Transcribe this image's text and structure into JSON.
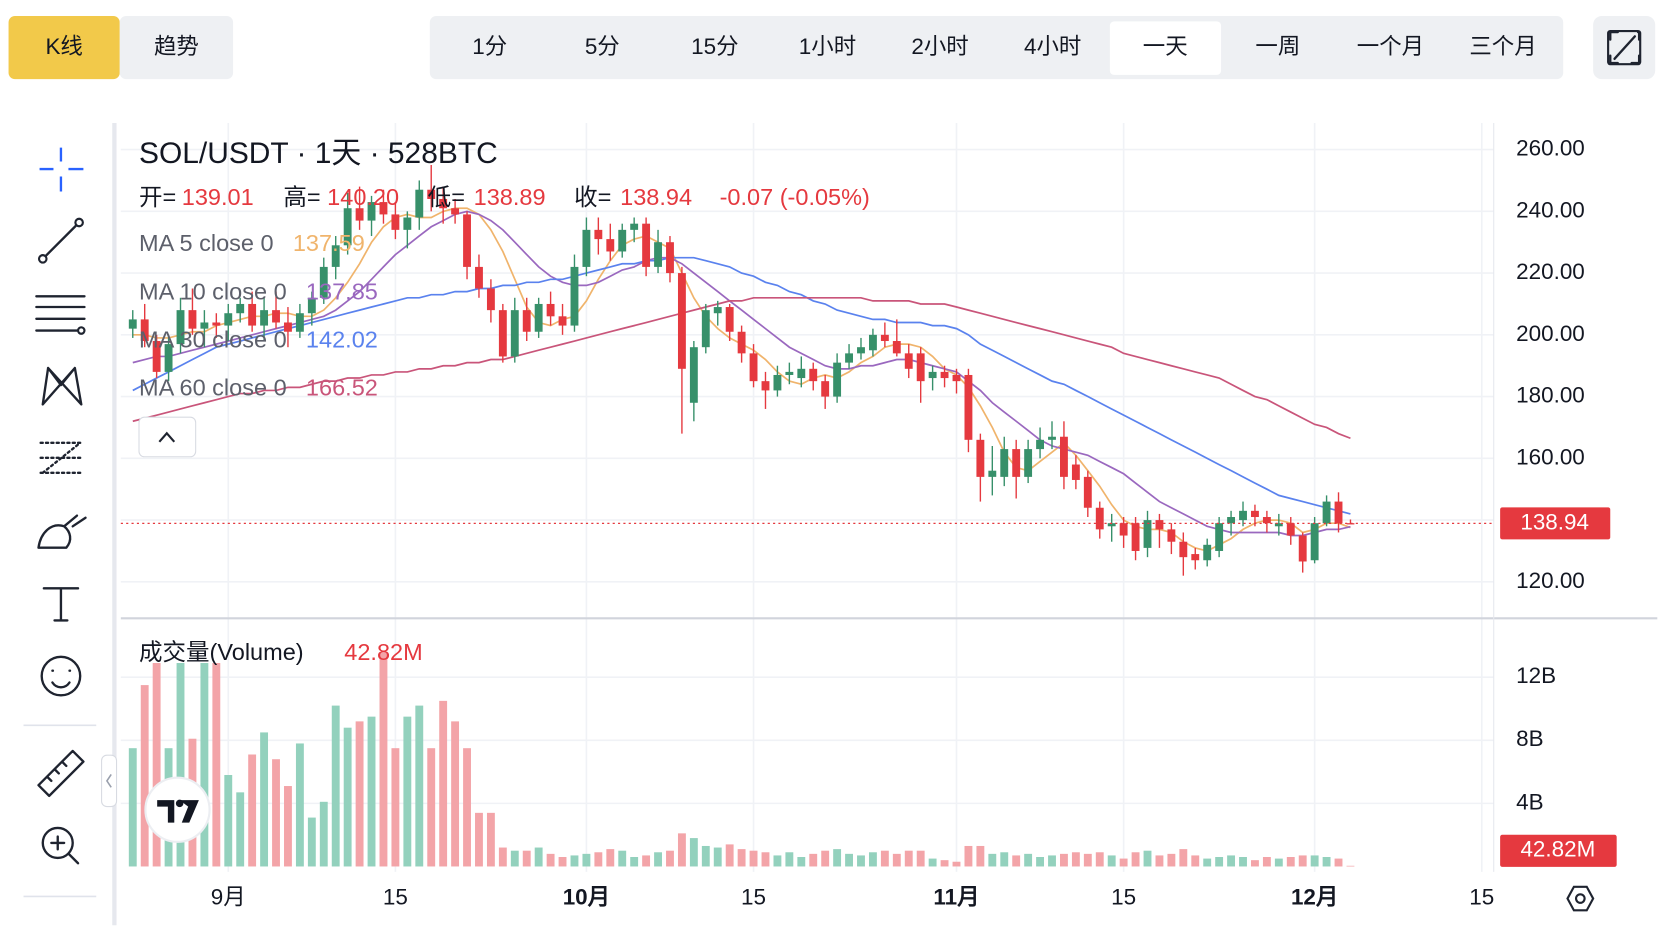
{
  "toolbar": {
    "view_tabs": [
      "K线",
      "趋势"
    ],
    "intervals": [
      "1分",
      "5分",
      "15分",
      "1小时",
      "2小时",
      "4小时",
      "一天",
      "一周",
      "一个月",
      "三个月"
    ]
  },
  "chart_data": {
    "type": "candlestick",
    "title": "SOL/USDT · 1天 · 528BTC",
    "ohlc_legend": [
      [
        "开=",
        "139.01"
      ],
      [
        "高=",
        "140.20"
      ],
      [
        "低=",
        "138.89"
      ],
      [
        "收=",
        "138.94"
      ]
    ],
    "change": "-0.07 (-0.05%)",
    "up_color": "#37906a",
    "down_color": "#e5393f",
    "x": [
      "08-24",
      "08-25",
      "08-26",
      "08-27",
      "08-28",
      "08-29",
      "08-30",
      "08-31",
      "09-01",
      "09-02",
      "09-03",
      "09-04",
      "09-05",
      "09-06",
      "09-07",
      "09-08",
      "09-09",
      "09-10",
      "09-11",
      "09-12",
      "09-13",
      "09-14",
      "09-15",
      "09-16",
      "09-17",
      "09-18",
      "09-19",
      "09-20",
      "09-21",
      "09-22",
      "09-23",
      "09-24",
      "09-25",
      "09-26",
      "09-27",
      "09-28",
      "09-29",
      "09-30",
      "10-01",
      "10-02",
      "10-03",
      "10-04",
      "10-05",
      "10-06",
      "10-07",
      "10-08",
      "10-09",
      "10-10",
      "10-11",
      "10-12",
      "10-13",
      "10-14",
      "10-15",
      "10-16",
      "10-17",
      "10-18",
      "10-19",
      "10-20",
      "10-21",
      "10-22",
      "10-23",
      "10-24",
      "10-25",
      "10-26",
      "10-27",
      "10-28",
      "10-29",
      "10-30",
      "10-31",
      "11-01",
      "11-02",
      "11-03",
      "11-04",
      "11-05",
      "11-06",
      "11-07",
      "11-08",
      "11-09",
      "11-10",
      "11-11",
      "11-12",
      "11-13",
      "11-14",
      "11-15",
      "11-16",
      "11-17",
      "11-18",
      "11-19",
      "11-20",
      "11-21",
      "11-22",
      "11-23",
      "11-24",
      "11-25",
      "11-26",
      "11-27",
      "11-28",
      "11-29",
      "11-30",
      "12-01",
      "12-02",
      "12-03",
      "12-04"
    ],
    "open": [
      202,
      205,
      198,
      188,
      197,
      208,
      202,
      204,
      203,
      207,
      210,
      203,
      208,
      204,
      201,
      207,
      212,
      222,
      229,
      241,
      237,
      243,
      239,
      234,
      238,
      247,
      244,
      241,
      239,
      222,
      215,
      208,
      193,
      208,
      201,
      210,
      206,
      203,
      222,
      234,
      231,
      227,
      234,
      236,
      222,
      230,
      220,
      178,
      196,
      207,
      209,
      201,
      194,
      185,
      182,
      187,
      186,
      189,
      185,
      180,
      191,
      194,
      195,
      200,
      198,
      194,
      194,
      186,
      188,
      187,
      187,
      166,
      154,
      154,
      163,
      154,
      163,
      166,
      167,
      158,
      154,
      144,
      138,
      139,
      139,
      131,
      140,
      137,
      133,
      129,
      127,
      130,
      139,
      140,
      143,
      141,
      138,
      139,
      135,
      127,
      139,
      146,
      139.01
    ],
    "high": [
      208,
      210,
      200,
      200,
      212,
      215,
      208,
      207,
      210,
      212,
      214,
      212,
      214,
      209,
      210,
      214,
      225,
      232,
      246,
      248,
      245,
      247,
      243,
      240,
      250,
      255,
      248,
      244,
      240,
      226,
      218,
      210,
      212,
      212,
      212,
      214,
      210,
      226,
      238,
      238,
      236,
      236,
      238,
      238,
      234,
      232,
      222,
      198,
      210,
      211,
      210,
      203,
      197,
      188,
      190,
      191,
      193,
      191,
      187,
      194,
      197,
      199,
      202,
      204,
      205,
      197,
      196,
      190,
      190,
      189,
      189,
      168,
      164,
      167,
      166,
      166,
      170,
      172,
      172,
      161,
      156,
      146,
      142,
      141,
      141,
      143,
      142,
      139,
      136,
      131,
      134,
      141,
      143,
      146,
      145,
      143,
      142,
      141,
      136,
      141,
      148,
      149,
      140.2
    ],
    "low": [
      199,
      196,
      186,
      185,
      194,
      200,
      196,
      199,
      198,
      204,
      201,
      198,
      202,
      196,
      199,
      203,
      210,
      218,
      226,
      234,
      232,
      236,
      231,
      228,
      234,
      240,
      236,
      236,
      218,
      212,
      204,
      191,
      191,
      198,
      199,
      203,
      200,
      201,
      219,
      226,
      224,
      225,
      230,
      219,
      220,
      217,
      168,
      172,
      194,
      203,
      198,
      191,
      183,
      176,
      180,
      184,
      183,
      182,
      176,
      178,
      189,
      192,
      193,
      196,
      193,
      186,
      178,
      182,
      183,
      181,
      162,
      146,
      148,
      151,
      147,
      152,
      160,
      163,
      150,
      150,
      141,
      134,
      133,
      131,
      127,
      128,
      131,
      129,
      122,
      124,
      125,
      128,
      135,
      138,
      138,
      136,
      135,
      132,
      123,
      126,
      138,
      136,
      138.89
    ],
    "close": [
      205,
      198,
      188,
      197,
      208,
      202,
      204,
      203,
      207,
      210,
      203,
      208,
      204,
      201,
      207,
      212,
      222,
      229,
      241,
      237,
      243,
      239,
      234,
      238,
      247,
      244,
      241,
      239,
      222,
      215,
      208,
      193,
      208,
      201,
      210,
      206,
      203,
      222,
      234,
      231,
      227,
      234,
      236,
      222,
      230,
      220,
      189,
      196,
      208,
      209,
      201,
      194,
      185,
      182,
      187,
      188,
      189,
      185,
      180,
      191,
      194,
      196,
      200,
      198,
      194,
      189,
      185,
      188,
      186,
      185,
      166,
      154,
      156,
      163,
      154,
      163,
      166,
      167,
      154,
      153,
      144,
      137,
      139,
      135,
      130,
      140,
      137,
      133,
      128,
      127,
      132,
      139,
      141,
      143,
      141,
      139,
      139,
      135,
      126.6,
      139,
      146,
      139,
      138.94
    ],
    "series": [
      {
        "name": "MA 5 close 0",
        "color": "#f0b46c",
        "values": [
          200,
          200,
          199,
          199,
          200,
          201,
          201,
          203,
          204,
          205,
          206,
          206,
          207,
          207,
          206,
          206,
          208,
          212,
          217,
          223,
          230,
          235,
          238,
          239,
          238,
          238,
          240,
          241,
          241,
          239,
          234,
          227,
          218,
          209,
          204,
          203,
          205,
          206,
          211,
          218,
          224,
          229,
          231,
          232,
          230,
          228,
          220,
          212,
          206,
          202,
          199,
          197,
          195,
          192,
          188,
          185,
          184,
          186,
          187,
          186,
          188,
          191,
          193,
          196,
          197,
          197,
          196,
          193,
          189,
          187,
          183,
          177,
          170,
          162,
          157,
          156,
          159,
          162,
          165,
          161,
          156,
          151,
          145,
          140,
          138,
          137,
          137,
          136,
          133,
          131,
          130,
          132,
          134,
          137,
          139,
          140,
          140,
          139,
          136,
          137,
          139,
          139,
          137.59
        ]
      },
      {
        "name": "MA 10 close 0",
        "color": "#9a68bf",
        "values": [
          191,
          192,
          193,
          193,
          194,
          195,
          196,
          197,
          198,
          199,
          200,
          201,
          202,
          203,
          204,
          205,
          206,
          208,
          211,
          214,
          218,
          222,
          226,
          229,
          232,
          235,
          237,
          239,
          240,
          239,
          237,
          234,
          230,
          226,
          222,
          219,
          217,
          216,
          216,
          217,
          219,
          221,
          222,
          224,
          225,
          225,
          223,
          220,
          217,
          214,
          211,
          208,
          205,
          202,
          199,
          196,
          194,
          192,
          190,
          189,
          189,
          190,
          190,
          191,
          192,
          192,
          191,
          190,
          189,
          188,
          185,
          182,
          178,
          175,
          172,
          169,
          166,
          164,
          163,
          162,
          161,
          159,
          157,
          155,
          152,
          149,
          146,
          144,
          142,
          140,
          138,
          137,
          136,
          136,
          136,
          136,
          136,
          135,
          135,
          136,
          137,
          137,
          137.85
        ]
      },
      {
        "name": "MA 30 close 0",
        "color": "#5a82ee",
        "values": [
          182,
          184,
          186,
          188,
          190,
          192,
          194,
          196,
          197,
          198,
          199,
          200,
          201,
          202,
          203,
          204,
          205,
          206,
          207,
          208,
          209,
          210,
          211,
          212,
          212,
          213,
          213,
          214,
          214,
          215,
          215,
          216,
          216,
          217,
          217,
          218,
          218,
          219,
          220,
          221,
          222,
          223,
          223,
          224,
          224,
          225,
          225,
          225,
          224,
          223,
          222,
          220,
          219,
          217,
          216,
          214,
          213,
          211,
          210,
          208,
          207,
          206,
          205,
          205,
          204,
          204,
          204,
          203,
          203,
          202,
          200,
          197,
          195,
          193,
          191,
          189,
          187,
          185,
          184,
          182,
          180,
          178,
          176,
          174,
          172,
          170,
          168,
          166,
          164,
          162,
          160,
          158,
          156,
          154,
          152,
          150,
          148,
          147,
          146,
          145,
          144,
          143,
          142.02
        ]
      },
      {
        "name": "MA 60 close 0",
        "color": "#c9557a",
        "values": [
          172,
          173,
          174,
          175,
          176,
          177,
          178,
          179,
          180,
          181,
          181,
          182,
          182,
          183,
          183,
          184,
          185,
          185,
          186,
          186,
          187,
          187,
          188,
          188,
          189,
          189,
          190,
          190,
          191,
          191,
          192,
          192,
          193,
          194,
          195,
          196,
          197,
          198,
          199,
          200,
          201,
          202,
          203,
          204,
          205,
          206,
          207,
          208,
          209,
          210,
          211,
          211,
          212,
          212,
          212,
          212,
          212,
          212,
          212,
          212,
          212,
          212,
          211,
          211,
          211,
          211,
          210,
          210,
          210,
          209,
          208,
          207,
          206,
          205,
          204,
          203,
          202,
          201,
          200,
          199,
          198,
          197,
          196,
          194,
          193,
          192,
          191,
          190,
          189,
          188,
          187,
          186,
          184,
          182,
          180,
          179,
          177,
          175,
          173,
          171,
          170,
          168,
          166.52
        ]
      }
    ],
    "xlim": [
      "08-23",
      "12-16"
    ],
    "xticks": [
      {
        "value": "09-01",
        "label": "9月"
      },
      {
        "value": "09-15",
        "label": "15"
      },
      {
        "value": "10-01",
        "label": "10月"
      },
      {
        "value": "10-15",
        "label": "15"
      },
      {
        "value": "11-01",
        "label": "11月"
      },
      {
        "value": "11-15",
        "label": "15"
      },
      {
        "value": "12-01",
        "label": "12月"
      },
      {
        "value": "12-15",
        "label": "15"
      }
    ],
    "ylim": [
      108.2,
      268.6
    ],
    "yticks": [
      {
        "value": 120,
        "label": "120.00"
      },
      {
        "value": 140,
        "label": "140.00"
      },
      {
        "value": 160,
        "label": "160.00"
      },
      {
        "value": 180,
        "label": "180.00"
      },
      {
        "value": 200,
        "label": "200.00"
      },
      {
        "value": 220,
        "label": "220.00"
      },
      {
        "value": 240,
        "label": "240.00"
      },
      {
        "value": 260,
        "label": "260.00"
      }
    ],
    "grid": true,
    "volume": {
      "name": "成交量(Volume)",
      "last_label": "42.82M",
      "up_color": "#93d1bd",
      "down_color": "#f3a4a8",
      "values": [
        7.5,
        11.5,
        12.9,
        7.5,
        12.9,
        8.1,
        12.9,
        12.9,
        5.8,
        4.7,
        7.1,
        8.5,
        6.8,
        5.1,
        7.8,
        3.1,
        4.1,
        10.2,
        8.8,
        9.2,
        9.5,
        13.6,
        7.5,
        9.5,
        10.2,
        7.5,
        10.5,
        9.2,
        7.5,
        3.4,
        3.4,
        1.2,
        1.0,
        1.0,
        1.2,
        0.8,
        0.6,
        0.7,
        0.8,
        0.9,
        1.1,
        1.0,
        0.6,
        0.7,
        0.9,
        1.0,
        2.1,
        1.8,
        1.3,
        1.2,
        1.4,
        1.1,
        1.0,
        0.9,
        0.7,
        0.9,
        0.6,
        0.8,
        1.0,
        1.1,
        0.8,
        0.7,
        0.9,
        1.0,
        0.8,
        1.0,
        1.0,
        0.5,
        0.4,
        0.3,
        1.3,
        1.3,
        0.8,
        0.9,
        0.7,
        0.8,
        0.6,
        0.7,
        0.8,
        0.9,
        0.8,
        0.9,
        0.7,
        0.5,
        0.9,
        1.0,
        0.7,
        0.8,
        1.1,
        0.7,
        0.5,
        0.6,
        0.7,
        0.6,
        0.4,
        0.6,
        0.5,
        0.6,
        0.7,
        0.7,
        0.6,
        0.5,
        0.04282
      ],
      "ylim": [
        0,
        15.6
      ],
      "yticks": [
        {
          "value": 4,
          "label": "4B"
        },
        {
          "value": 8,
          "label": "8B"
        },
        {
          "value": 12,
          "label": "12B"
        }
      ]
    }
  }
}
